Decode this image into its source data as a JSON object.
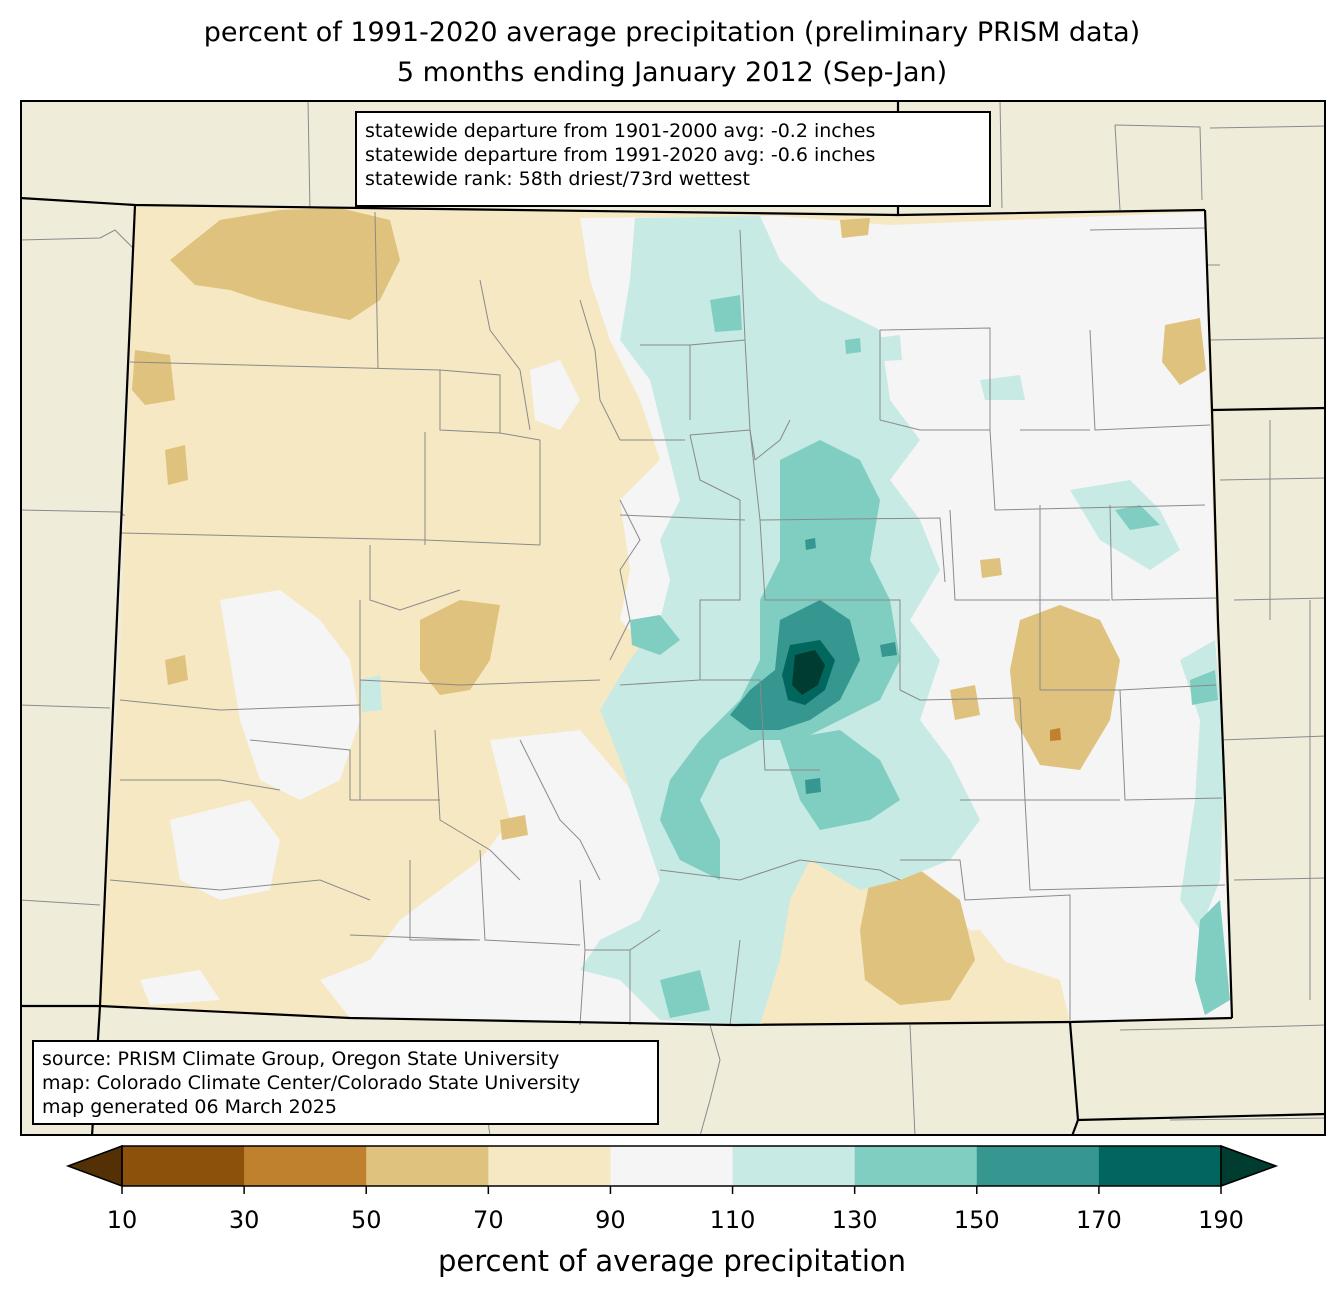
{
  "title": {
    "line1": "percent of 1991-2020 average precipitation (preliminary PRISM data)",
    "line2": "5 months ending January 2012 (Sep-Jan)"
  },
  "stats_box": {
    "line1": "statewide departure from 1901-2000 avg: -0.2 inches",
    "line2": "statewide departure from 1991-2020 avg: -0.6 inches",
    "line3": "statewide rank: 58th driest/73rd wettest"
  },
  "source_box": {
    "line1": "source: PRISM Climate Group, Oregon State University",
    "line2": "map: Colorado Climate Center/Colorado State University",
    "line3": "map generated 06 March 2025"
  },
  "colorbar": {
    "label": "percent of average precipitation",
    "ticks": [
      "10",
      "30",
      "50",
      "70",
      "90",
      "110",
      "130",
      "150",
      "170",
      "190"
    ],
    "under_color": "#543005",
    "over_color": "#003c30",
    "colors": [
      "#8c510a",
      "#bf812d",
      "#dfc27d",
      "#f6e8c3",
      "#f5f5f5",
      "#c7eae5",
      "#80cdc1",
      "#35978f",
      "#01665e"
    ]
  },
  "map_colors": {
    "land_outside": "#efedda",
    "state_base": "#f6e8c3"
  }
}
